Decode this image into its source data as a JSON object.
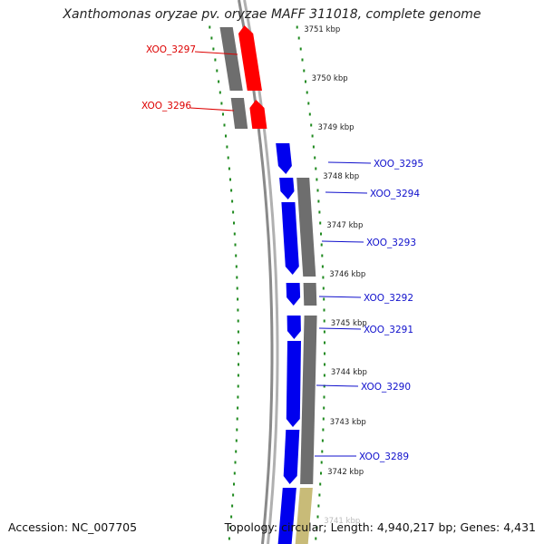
{
  "title": "Xanthomonas oryzae pv. oryzae MAFF 311018, complete genome",
  "accession_text": "Accession: NC_007705",
  "topology_text": "Topology: circular; Length: 4,940,217 bp; Genes: 4,431",
  "colors": {
    "forward_gene": "#0000ee",
    "reverse_gene": "#ff0000",
    "other_gene": "#c8bb78",
    "cds": "#6e6e6e",
    "tick": "#1f8a1f",
    "backbone": "#8a8a8a",
    "forward_label": "#1010cc",
    "reverse_label": "#dd0000"
  },
  "scale_labels": [
    {
      "kbp": 3751,
      "text": "3751 kbp"
    },
    {
      "kbp": 3750,
      "text": "3750 kbp"
    },
    {
      "kbp": 3749,
      "text": "3749 kbp"
    },
    {
      "kbp": 3748,
      "text": "3748 kbp"
    },
    {
      "kbp": 3747,
      "text": "3747 kbp"
    },
    {
      "kbp": 3746,
      "text": "3746 kbp"
    },
    {
      "kbp": 3745,
      "text": "3745 kbp"
    },
    {
      "kbp": 3744,
      "text": "3744 kbp"
    },
    {
      "kbp": 3743,
      "text": "3743 kbp"
    },
    {
      "kbp": 3742,
      "text": "3742 kbp"
    },
    {
      "kbp": 3741,
      "text": "3741 kbp"
    }
  ],
  "gene_labels": [
    {
      "text": "XOO_3297",
      "strand": "reverse"
    },
    {
      "text": "XOO_3296",
      "strand": "reverse"
    },
    {
      "text": "XOO_3295",
      "strand": "forward"
    },
    {
      "text": "XOO_3294",
      "strand": "forward"
    },
    {
      "text": "XOO_3293",
      "strand": "forward"
    },
    {
      "text": "XOO_3292",
      "strand": "forward"
    },
    {
      "text": "XOO_3291",
      "strand": "forward"
    },
    {
      "text": "XOO_3290",
      "strand": "forward"
    },
    {
      "text": "XOO_3289",
      "strand": "forward"
    }
  ]
}
